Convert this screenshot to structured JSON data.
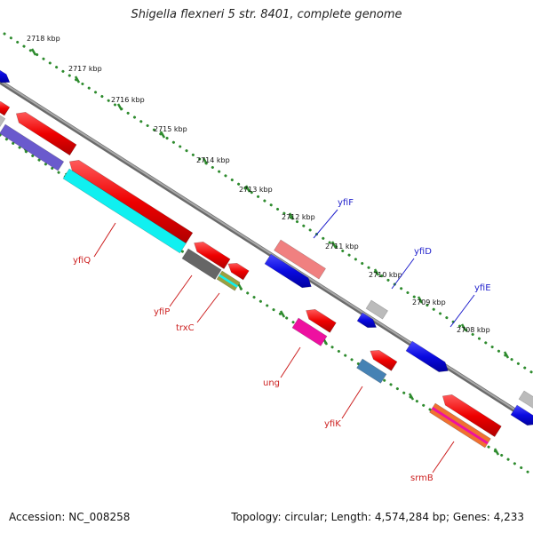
{
  "title": "Shigella flexneri 5 str. 8401, complete genome",
  "footer": {
    "accession": "Accession: NC_008258",
    "topology": "Topology: circular; Length: 4,574,284 bp; Genes: 4,233"
  },
  "ticks": [
    {
      "label": "2718 kbp"
    },
    {
      "label": "2717 kbp"
    },
    {
      "label": "2716 kbp"
    },
    {
      "label": "2715 kbp"
    },
    {
      "label": "2714 kbp"
    },
    {
      "label": "2713 kbp"
    },
    {
      "label": "2712 kbp"
    },
    {
      "label": "2711 kbp"
    },
    {
      "label": "2710 kbp"
    },
    {
      "label": "2709 kbp"
    },
    {
      "label": "2708 kbp"
    }
  ],
  "gene_labels": {
    "top": [
      {
        "name": "yfiF",
        "color": "#1f1fcc"
      },
      {
        "name": "yfiD",
        "color": "#1f1fcc"
      },
      {
        "name": "yfiE",
        "color": "#1f1fcc"
      }
    ],
    "bottom": [
      {
        "name": "yfiQ",
        "color": "#cc1f1f"
      },
      {
        "name": "yfiP",
        "color": "#cc1f1f"
      },
      {
        "name": "trxC",
        "color": "#cc1f1f"
      },
      {
        "name": "ung",
        "color": "#cc1f1f"
      },
      {
        "name": "yfiK",
        "color": "#cc1f1f"
      },
      {
        "name": "srmB",
        "color": "#cc1f1f"
      }
    ]
  },
  "colors": {
    "backbone": "#8c8c8c",
    "tick_dots": "#2e8b2e",
    "forward_gene": "#1010e0",
    "reverse_gene": "#ee1111",
    "cyan_feature": "#10f0f0",
    "purple_feature": "#6a5acd",
    "gray_feature": "#bbbbbb",
    "magenta_feature": "#ee10a0",
    "steelblue_feature": "#4682b4"
  }
}
